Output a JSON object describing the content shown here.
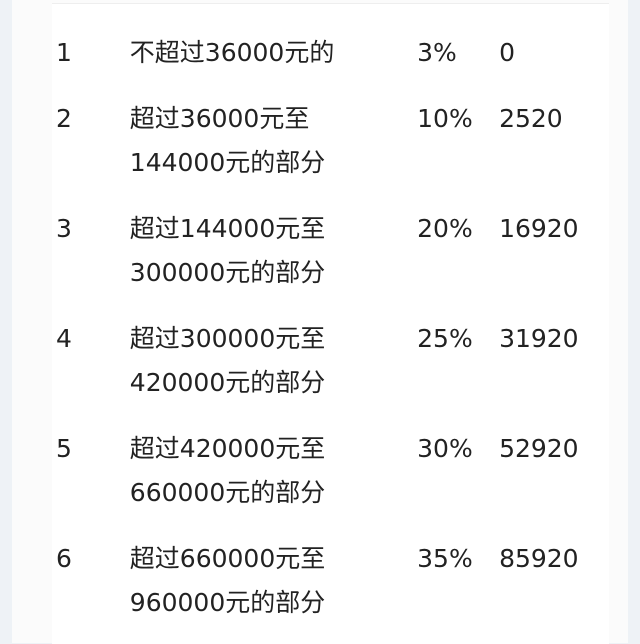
{
  "table": {
    "rows": [
      {
        "level": "1",
        "range_lines": [
          "不超过36000元的"
        ],
        "rate": "3%",
        "deduction": "0"
      },
      {
        "level": "2",
        "range_lines": [
          "超过36000元至",
          "144000元的部分"
        ],
        "rate": "10%",
        "deduction": "2520"
      },
      {
        "level": "3",
        "range_lines": [
          "超过144000元至",
          "300000元的部分"
        ],
        "rate": "20%",
        "deduction": "16920"
      },
      {
        "level": "4",
        "range_lines": [
          "超过300000元至",
          "420000元的部分"
        ],
        "rate": "25%",
        "deduction": "31920"
      },
      {
        "level": "5",
        "range_lines": [
          "超过420000元至",
          "660000元的部分"
        ],
        "rate": "30%",
        "deduction": "52920"
      },
      {
        "level": "6",
        "range_lines": [
          "超过660000元至",
          "960000元的部分"
        ],
        "rate": "35%",
        "deduction": "85920"
      }
    ]
  }
}
